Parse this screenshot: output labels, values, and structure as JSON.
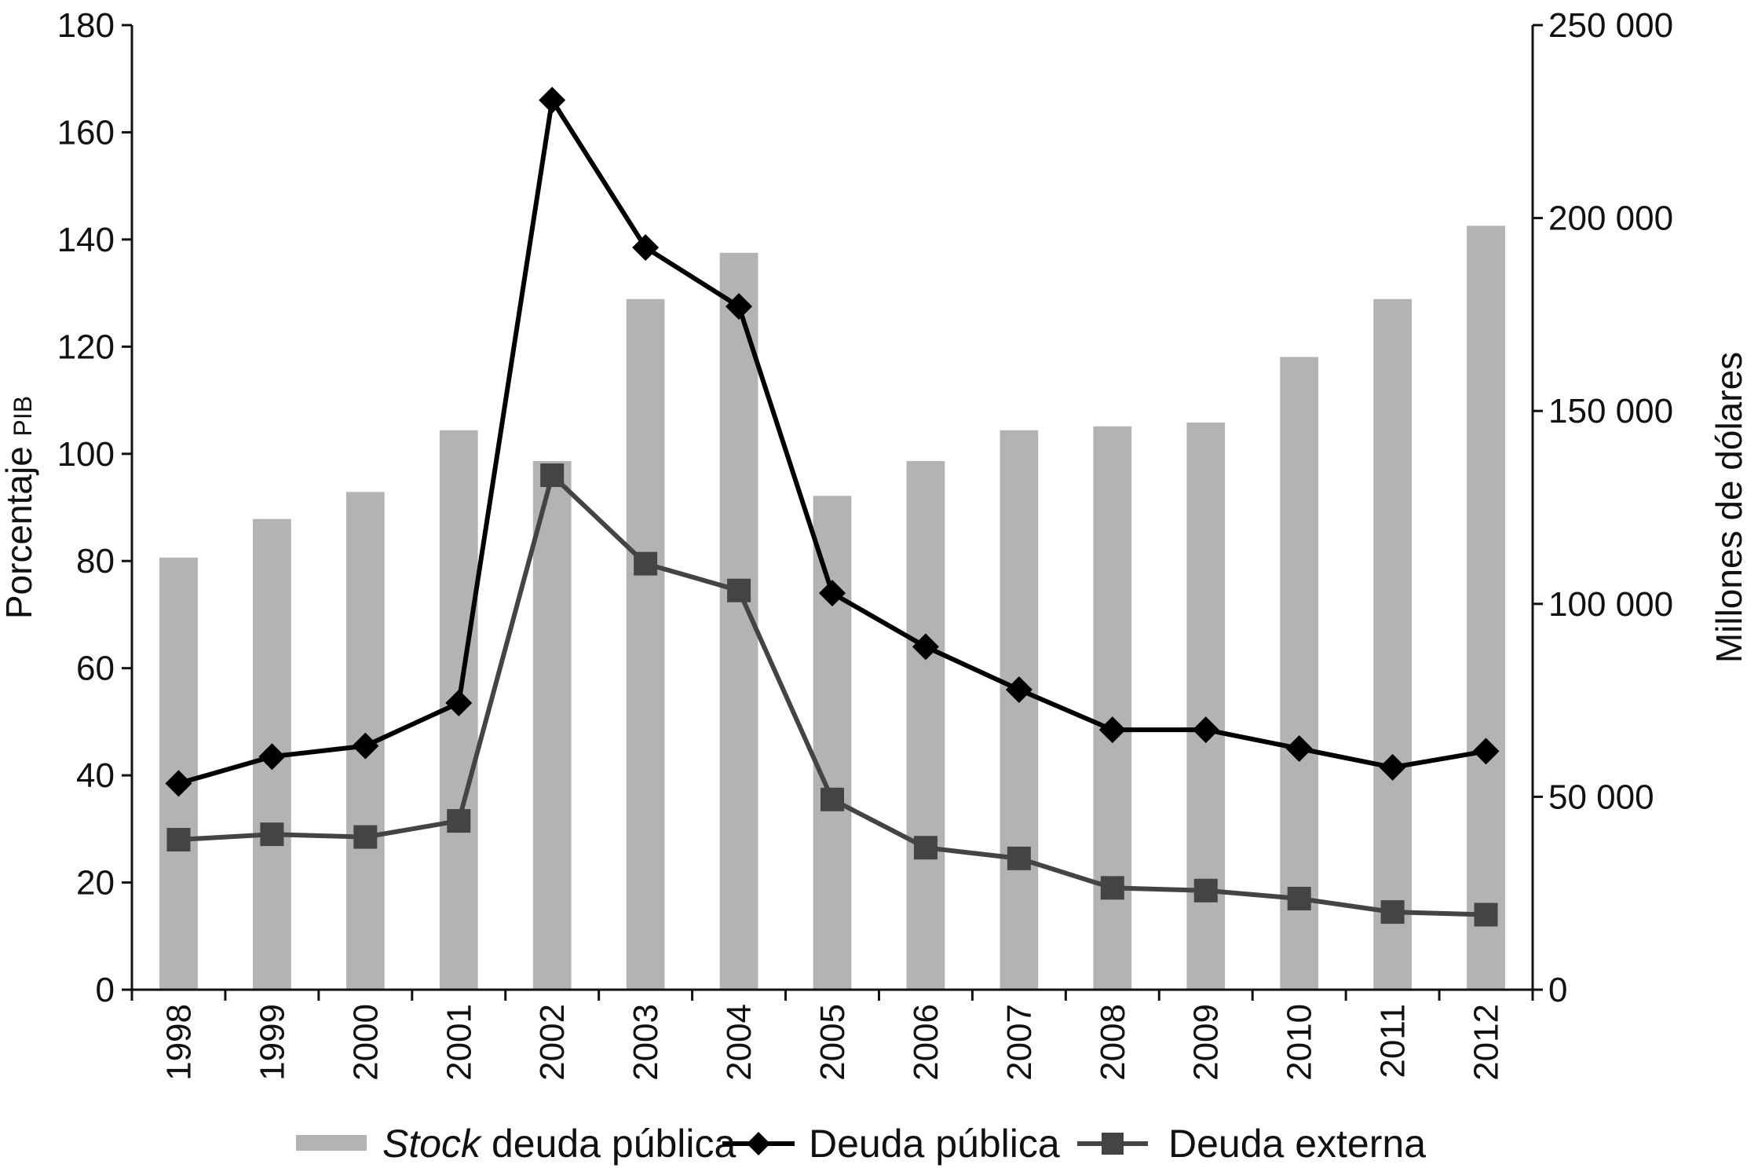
{
  "chart_data": {
    "type": "bar",
    "categories": [
      "1998",
      "1999",
      "2000",
      "2001",
      "2002",
      "2003",
      "2004",
      "2005",
      "2006",
      "2007",
      "2008",
      "2009",
      "2010",
      "2011",
      "2012"
    ],
    "series": [
      {
        "name": "Stock deuda pública",
        "name_italic": "Stock",
        "name_rest": " deuda pública",
        "kind": "bar",
        "axis": "right",
        "color": "#b3b3b3",
        "values": [
          112000,
          122000,
          129000,
          145000,
          137000,
          179000,
          191000,
          128000,
          137000,
          145000,
          146000,
          147000,
          164000,
          179000,
          198000
        ]
      },
      {
        "name": "Deuda pública",
        "kind": "line",
        "marker": "diamond",
        "axis": "left",
        "color": "#000000",
        "values": [
          38.5,
          43.5,
          45.5,
          53.5,
          166.0,
          138.5,
          127.5,
          74.0,
          64.0,
          56.0,
          48.5,
          48.5,
          45.0,
          41.5,
          44.5
        ]
      },
      {
        "name": "Deuda externa",
        "kind": "line",
        "marker": "square",
        "axis": "left",
        "color": "#444444",
        "values": [
          28.0,
          29.0,
          28.5,
          31.5,
          96.0,
          79.5,
          74.5,
          35.5,
          26.5,
          24.5,
          19.0,
          18.5,
          17.0,
          14.5,
          14.0
        ]
      }
    ],
    "left_axis": {
      "title": "Porcentaje PIB",
      "title_main": "Porcentaje ",
      "title_small": "PIB",
      "ylim": [
        0,
        180
      ],
      "ticks": [
        0,
        20,
        40,
        60,
        80,
        100,
        120,
        140,
        160,
        180
      ],
      "tick_labels": [
        "0",
        "20",
        "40",
        "60",
        "80",
        "100",
        "120",
        "140",
        "160",
        "180"
      ]
    },
    "right_axis": {
      "title": "Millones de dólares",
      "ylim": [
        0,
        250000
      ],
      "ticks": [
        0,
        50000,
        100000,
        150000,
        200000,
        250000
      ],
      "tick_labels": [
        "0",
        "50 000",
        "100 000",
        "150 000",
        "200 000",
        "250 000"
      ]
    },
    "grid": false,
    "legend_position": "bottom"
  }
}
